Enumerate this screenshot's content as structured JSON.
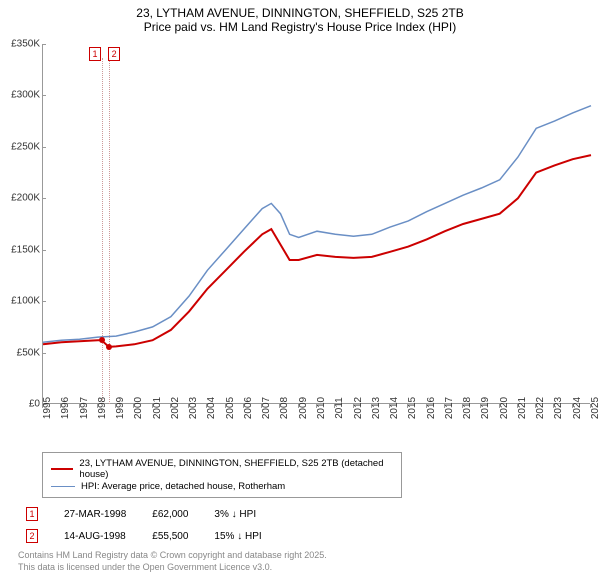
{
  "title_line1": "23, LYTHAM AVENUE, DINNINGTON, SHEFFIELD, S25 2TB",
  "title_line2": "Price paid vs. HM Land Registry's House Price Index (HPI)",
  "chart": {
    "type": "line",
    "background_color": "#ffffff",
    "ylim": [
      0,
      350000
    ],
    "ytick_step": 50000,
    "ytick_labels": [
      "£0",
      "£50K",
      "£100K",
      "£150K",
      "£200K",
      "£250K",
      "£300K",
      "£350K"
    ],
    "xlim": [
      1995,
      2025
    ],
    "xtick_step": 1,
    "xtick_labels": [
      "1995",
      "1996",
      "1997",
      "1998",
      "1999",
      "2000",
      "2001",
      "2002",
      "2003",
      "2004",
      "2005",
      "2006",
      "2007",
      "2008",
      "2009",
      "2010",
      "2011",
      "2012",
      "2013",
      "2014",
      "2015",
      "2016",
      "2017",
      "2018",
      "2019",
      "2020",
      "2021",
      "2022",
      "2023",
      "2024",
      "2025"
    ],
    "grid": false,
    "axis_color": "#999999",
    "tick_fontsize": 10,
    "title_fontsize": 12,
    "series": [
      {
        "name": "property_price",
        "label": "23, LYTHAM AVENUE, DINNINGTON, SHEFFIELD, S25 2TB (detached house)",
        "color": "#cc0000",
        "line_width": 2,
        "x": [
          1995,
          1996,
          1997,
          1998,
          1998.2,
          1998.6,
          1999,
          2000,
          2001,
          2002,
          2003,
          2004,
          2005,
          2006,
          2007,
          2007.5,
          2008,
          2008.5,
          2009,
          2010,
          2011,
          2012,
          2013,
          2014,
          2015,
          2016,
          2017,
          2018,
          2019,
          2020,
          2021,
          2022,
          2023,
          2024,
          2025
        ],
        "y": [
          58000,
          60000,
          61000,
          62000,
          62000,
          55500,
          56000,
          58000,
          62000,
          72000,
          90000,
          112000,
          130000,
          148000,
          165000,
          170000,
          155000,
          140000,
          140000,
          145000,
          143000,
          142000,
          143000,
          148000,
          153000,
          160000,
          168000,
          175000,
          180000,
          185000,
          200000,
          225000,
          232000,
          238000,
          242000
        ]
      },
      {
        "name": "hpi_rotherham",
        "label": "HPI: Average price, detached house, Rotherham",
        "color": "#6a8fc5",
        "line_width": 1.5,
        "x": [
          1995,
          1996,
          1997,
          1998,
          1999,
          2000,
          2001,
          2002,
          2003,
          2004,
          2005,
          2006,
          2007,
          2007.5,
          2008,
          2008.5,
          2009,
          2010,
          2011,
          2012,
          2013,
          2014,
          2015,
          2016,
          2017,
          2018,
          2019,
          2020,
          2021,
          2022,
          2023,
          2024,
          2025
        ],
        "y": [
          60000,
          62000,
          63000,
          65000,
          66000,
          70000,
          75000,
          85000,
          105000,
          130000,
          150000,
          170000,
          190000,
          195000,
          185000,
          165000,
          162000,
          168000,
          165000,
          163000,
          165000,
          172000,
          178000,
          187000,
          195000,
          203000,
          210000,
          218000,
          240000,
          268000,
          275000,
          283000,
          290000
        ]
      }
    ],
    "markers": [
      {
        "index": 1,
        "x": 1998.23,
        "price": 62000,
        "label_top": 47
      },
      {
        "index": 2,
        "x": 1998.62,
        "price": 55500,
        "label_top": 47
      }
    ],
    "marker_vline_color": "#ddaaaa",
    "marker_box_border": "#cc0000",
    "marker_box_color": "#cc0000"
  },
  "legend": {
    "border_color": "#999999",
    "fontsize": 9.5,
    "items": [
      {
        "color": "#cc0000",
        "width": 2,
        "label": "23, LYTHAM AVENUE, DINNINGTON, SHEFFIELD, S25 2TB (detached house)"
      },
      {
        "color": "#6a8fc5",
        "width": 1.5,
        "label": "HPI: Average price, detached house, Rotherham"
      }
    ]
  },
  "transactions": [
    {
      "idx": "1",
      "date": "27-MAR-1998",
      "price": "£62,000",
      "pct": "3%",
      "arrow": "↓",
      "vs": "HPI"
    },
    {
      "idx": "2",
      "date": "14-AUG-1998",
      "price": "£55,500",
      "pct": "15%",
      "arrow": "↓",
      "vs": "HPI"
    }
  ],
  "footer_line1": "Contains HM Land Registry data © Crown copyright and database right 2025.",
  "footer_line2": "This data is licensed under the Open Government Licence v3.0."
}
